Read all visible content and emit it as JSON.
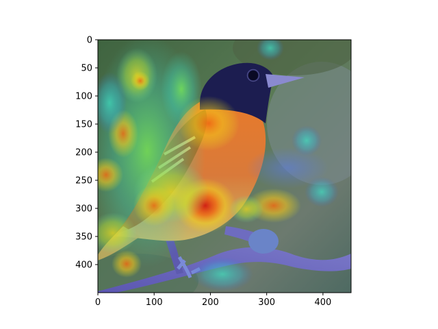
{
  "figure": {
    "x_ticks": [
      "0",
      "100",
      "200",
      "300",
      "400"
    ],
    "y_ticks": [
      "0",
      "50",
      "100",
      "150",
      "200",
      "250",
      "300",
      "350",
      "400"
    ],
    "x_tick_values": [
      0,
      100,
      200,
      300,
      400
    ],
    "y_tick_values": [
      0,
      50,
      100,
      150,
      200,
      250,
      300,
      350,
      400
    ],
    "xlim": [
      0,
      450
    ],
    "ylim": [
      450,
      0
    ]
  },
  "image": {
    "subject": "bird-on-branch",
    "overlay": "jet-heatmap",
    "colors": {
      "background_green": "#4b6b46",
      "head_navy": "#1a1b4a",
      "body_orange": "#e28a2b",
      "branch_purple": "#6b6bb8"
    }
  }
}
